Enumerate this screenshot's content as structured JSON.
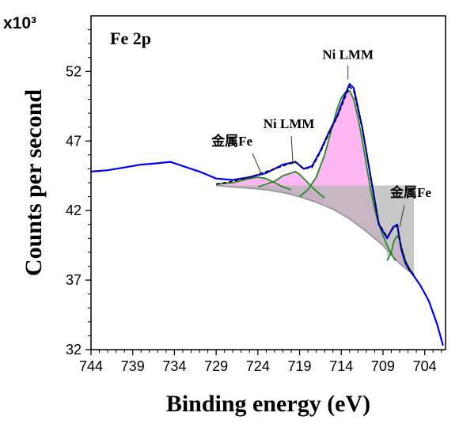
{
  "chart_data": {
    "type": "line",
    "title": "Fe 2p",
    "xlabel": "Binding energy (eV)",
    "ylabel": "Counts per second",
    "y_multiplier": "x10³",
    "xlim": [
      744,
      701.5
    ],
    "ylim": [
      32,
      56
    ],
    "x_reversed": true,
    "grid": false,
    "x_ticks": [
      "744",
      "739",
      "734",
      "729",
      "724",
      "719",
      "714",
      "709",
      "704"
    ],
    "y_ticks": [
      "32",
      "37",
      "42",
      "47",
      "52"
    ],
    "annotations": [
      {
        "text": "Ni LMM",
        "x": 713.2,
        "y": 51.3
      },
      {
        "text": "Ni LMM",
        "x": 719.8,
        "y": 45.2
      },
      {
        "text": "金属Fe",
        "x": 723.5,
        "y": 44.4
      },
      {
        "text": "金属Fe",
        "x": 707.0,
        "y": 40.7
      }
    ],
    "series": [
      {
        "role": "measured",
        "color": "#0000ff",
        "x": [
          744,
          742,
          740,
          738,
          736,
          734.5,
          733,
          731,
          729,
          727,
          725,
          723,
          721,
          719.5,
          718.5,
          717.5,
          716.5,
          715.5,
          714.5,
          713.5,
          713,
          712.5,
          711.5,
          710.5,
          709.5,
          708.5,
          707.8,
          707.3,
          706.8,
          706.3,
          705.8,
          705.3,
          704.5,
          703.5,
          702.5,
          701.8
        ],
        "y": [
          44.8,
          44.9,
          45.1,
          45.3,
          45.4,
          45.5,
          45.2,
          44.8,
          44.3,
          44.2,
          44.4,
          44.7,
          45.3,
          45.5,
          45.0,
          45.2,
          46.3,
          47.6,
          48.8,
          50.4,
          51.1,
          50.8,
          48.0,
          44.5,
          41.0,
          40.0,
          40.8,
          41.0,
          39.2,
          38.2,
          37.7,
          37.3,
          36.6,
          35.5,
          33.8,
          32.3
        ]
      },
      {
        "role": "fit-envelope",
        "color": "#000000",
        "x": [
          729,
          727,
          725,
          723,
          721,
          719.5,
          718.5,
          717.5,
          716.5,
          715.5,
          714.5,
          713.5,
          713,
          712.5,
          711.5,
          710.5,
          709.5,
          708.5,
          707.8,
          707.3,
          706.8,
          706.3,
          705.8,
          705.3
        ],
        "y": [
          43.9,
          44.1,
          44.4,
          44.8,
          45.2,
          45.5,
          45.0,
          45.1,
          46.2,
          47.5,
          48.7,
          50.2,
          50.9,
          50.6,
          47.9,
          44.6,
          41.1,
          40.1,
          40.7,
          40.9,
          39.3,
          38.3,
          37.7,
          37.4
        ]
      },
      {
        "role": "component-metal-fe-peak",
        "color": "#228b22",
        "x": [
          729,
          727,
          725,
          724,
          723,
          722,
          721,
          720
        ],
        "y": [
          43.9,
          44.0,
          44.3,
          44.4,
          44.3,
          44.0,
          43.7,
          43.5
        ]
      },
      {
        "role": "component-ni-lmm-peak",
        "color": "#228b22",
        "x": [
          724,
          722,
          721,
          720,
          719.5,
          719,
          718,
          717,
          716
        ],
        "y": [
          43.7,
          44.1,
          44.5,
          44.7,
          44.8,
          44.6,
          44.0,
          43.4,
          42.9
        ]
      },
      {
        "role": "component-ni-lmm-main",
        "color": "#228b22",
        "x": [
          719,
          718,
          717,
          716,
          715,
          714.5,
          714,
          713.5,
          713,
          712.5,
          712,
          711.5,
          711,
          710.5,
          710,
          709.5,
          709,
          708.5,
          708,
          707.5
        ],
        "y": [
          43.0,
          43.5,
          44.4,
          46.0,
          48.2,
          49.3,
          50.1,
          50.5,
          50.6,
          50.0,
          48.7,
          47.1,
          45.3,
          43.6,
          42.1,
          41.0,
          40.2,
          39.5,
          38.9,
          38.4
        ]
      },
      {
        "role": "component-metal-fe-small",
        "color": "#228b22",
        "x": [
          708.5,
          708,
          707.7,
          707.3,
          707,
          706.7,
          706.3,
          705.8,
          705.3
        ],
        "y": [
          38.4,
          39.0,
          39.8,
          40.2,
          39.9,
          39.2,
          38.4,
          37.8,
          37.4
        ]
      },
      {
        "role": "background",
        "color": "#999999",
        "x": [
          729,
          727,
          725,
          723,
          721,
          719,
          717,
          715,
          713,
          711,
          709,
          708,
          707,
          706,
          705.3
        ],
        "y": [
          43.8,
          43.7,
          43.6,
          43.5,
          43.3,
          43.0,
          42.6,
          42.1,
          41.4,
          40.5,
          39.5,
          38.8,
          38.2,
          37.7,
          37.4
        ]
      }
    ]
  }
}
